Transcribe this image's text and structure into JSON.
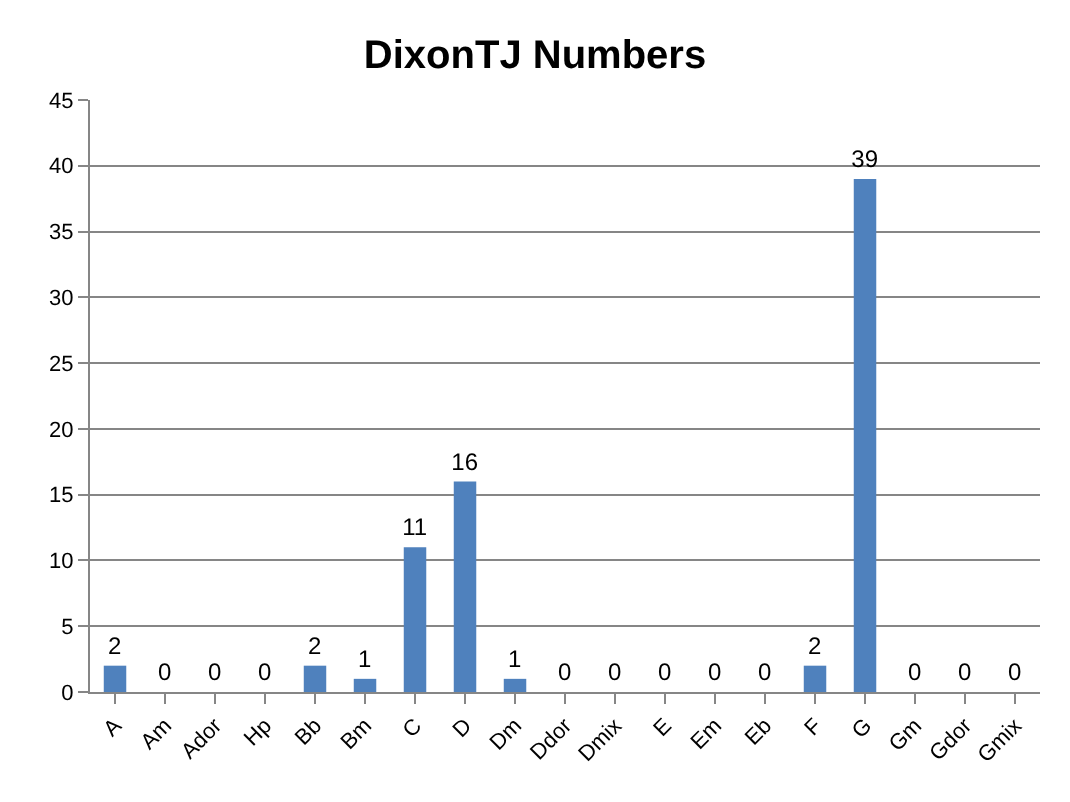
{
  "chart_data": {
    "type": "bar",
    "title": "DixonTJ Numbers",
    "categories": [
      "A",
      "Am",
      "Ador",
      "Hp",
      "Bb",
      "Bm",
      "C",
      "D",
      "Dm",
      "Ddor",
      "Dmix",
      "E",
      "Em",
      "Eb",
      "F",
      "G",
      "Gm",
      "Gdor",
      "Gmix"
    ],
    "values": [
      2,
      0,
      0,
      0,
      2,
      1,
      11,
      16,
      1,
      0,
      0,
      0,
      0,
      0,
      2,
      39,
      0,
      0,
      0
    ],
    "color": "#4f81bd",
    "ylim": [
      0,
      45
    ],
    "yticks": [
      0,
      5,
      10,
      15,
      20,
      25,
      30,
      35,
      40,
      45
    ],
    "grid": "y",
    "data_labels": true,
    "legend": false
  }
}
